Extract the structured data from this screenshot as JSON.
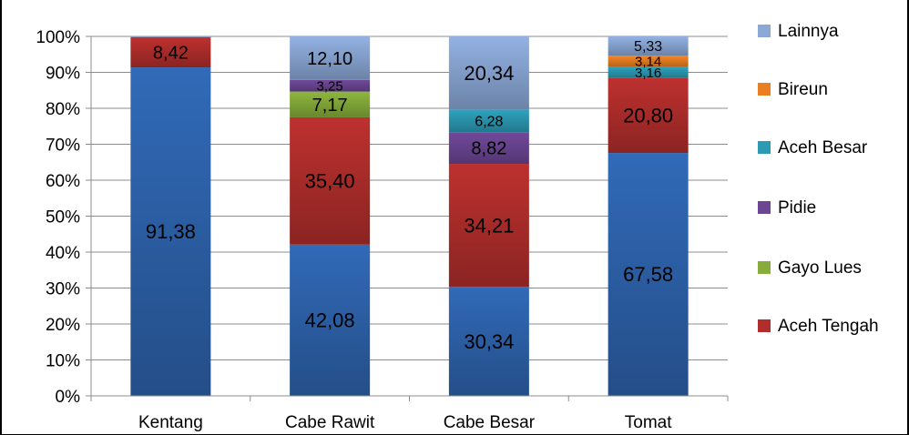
{
  "chart_data": {
    "type": "bar",
    "stacked": true,
    "percent_stacked": true,
    "title": "",
    "categories": [
      "Kentang",
      "Cabe Rawit",
      "Cabe Besar",
      "Tomat"
    ],
    "ylim": [
      0,
      100
    ],
    "yticks": [
      "0%",
      "10%",
      "20%",
      "30%",
      "40%",
      "50%",
      "60%",
      "70%",
      "80%",
      "90%",
      "100%"
    ],
    "grid": true,
    "legend_position": "right",
    "series": [
      {
        "name": "",
        "color": "#2E64AE",
        "values": [
          91.38,
          42.08,
          30.34,
          67.58
        ],
        "labels": [
          "91,38",
          "42,08",
          "30,34",
          "67,58"
        ]
      },
      {
        "name": "Aceh Tengah",
        "color": "#B22E2C",
        "values": [
          8.42,
          35.4,
          34.21,
          20.8
        ],
        "labels": [
          "8,42",
          "35,40",
          "34,21",
          "20,80"
        ]
      },
      {
        "name": "Gayo Lues",
        "color": "#86AD3A",
        "values": [
          0,
          7.17,
          0,
          0
        ],
        "labels": [
          "",
          "7,17",
          "",
          ""
        ]
      },
      {
        "name": "Pidie",
        "color": "#6C4593",
        "values": [
          0,
          3.25,
          8.82,
          0
        ],
        "labels": [
          "",
          "3,25",
          "8,82",
          ""
        ]
      },
      {
        "name": "Aceh Besar",
        "color": "#2B9AB3",
        "values": [
          0,
          0,
          6.28,
          3.16
        ],
        "labels": [
          "",
          "",
          "6,28",
          "3,16"
        ]
      },
      {
        "name": "Bireun",
        "color": "#E97F22",
        "values": [
          0,
          0,
          0,
          3.14
        ],
        "labels": [
          "",
          "",
          "",
          "3,14"
        ]
      },
      {
        "name": "Lainnya",
        "color": "#8BA8D6",
        "values": [
          0.2,
          12.1,
          20.34,
          5.33
        ],
        "labels": [
          "",
          "12,10",
          "20,34",
          "5,33"
        ]
      }
    ]
  },
  "legend": {
    "items": [
      {
        "label": "Lainnya",
        "color": "#8BA8D6"
      },
      {
        "label": "Bireun",
        "color": "#E97F22"
      },
      {
        "label": "Aceh Besar",
        "color": "#2B9AB3"
      },
      {
        "label": "Pidie",
        "color": "#6C4593"
      },
      {
        "label": "Gayo Lues",
        "color": "#86AD3A"
      },
      {
        "label": "Aceh Tengah",
        "color": "#B22E2C"
      }
    ]
  }
}
